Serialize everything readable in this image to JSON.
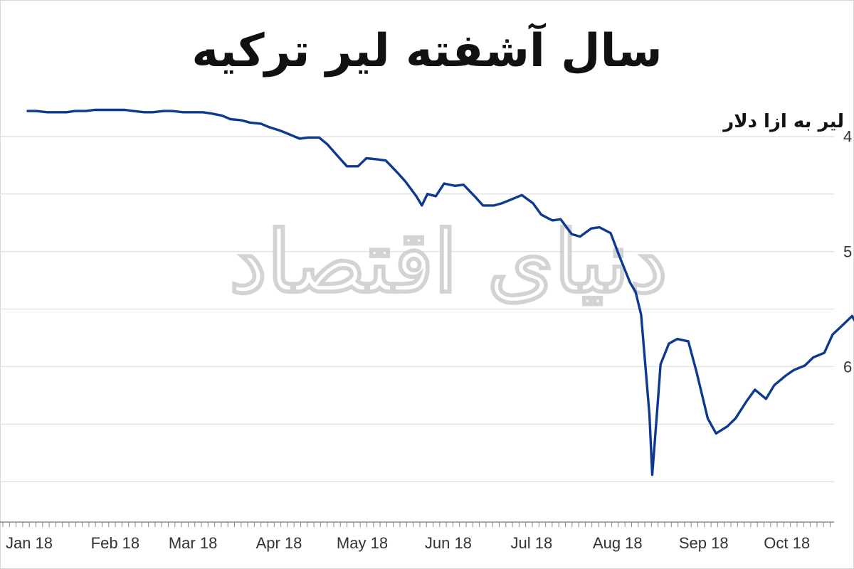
{
  "title": "سال آشفته لیر ترکیه",
  "unit_label": "لیر به ازا دلار",
  "watermark": "دنیای اقتصاد",
  "colors": {
    "line": "#0d3a8f",
    "grid": "#e2e2e2",
    "axis": "#8a8a8a",
    "background": "#ffffff"
  },
  "chart_data": {
    "type": "line",
    "title": "سال آشفته لیر ترکیه",
    "ylabel": "لیر به ازا دلار",
    "xlabel": "",
    "x_tick_labels": [
      "Jan 18",
      "Feb 18",
      "Mar 18",
      "Apr 18",
      "May 18",
      "Jun 18",
      "Jul 18",
      "Aug 18",
      "Sep 18",
      "Oct 18"
    ],
    "y_tick_labels": [
      "4",
      "5",
      "6"
    ],
    "y_ticks": [
      4.0,
      4.5,
      5.0,
      5.5,
      6.0,
      6.5,
      7.0
    ],
    "ylim": [
      3.6,
      7.35
    ],
    "y_inverted": true,
    "grid": true,
    "series": [
      {
        "x": [
          "2018-01-01",
          "2018-01-04",
          "2018-01-08",
          "2018-01-11",
          "2018-01-15",
          "2018-01-18",
          "2018-01-22",
          "2018-01-25",
          "2018-01-29",
          "2018-02-01",
          "2018-02-05",
          "2018-02-08",
          "2018-02-12",
          "2018-02-15",
          "2018-02-19",
          "2018-02-22",
          "2018-02-26",
          "2018-03-01",
          "2018-03-05",
          "2018-03-08",
          "2018-03-12",
          "2018-03-15",
          "2018-03-19",
          "2018-03-22",
          "2018-03-26",
          "2018-03-29",
          "2018-04-02",
          "2018-04-05",
          "2018-04-09",
          "2018-04-12",
          "2018-04-16",
          "2018-04-19",
          "2018-04-23",
          "2018-04-26",
          "2018-04-30",
          "2018-05-03",
          "2018-05-07",
          "2018-05-10",
          "2018-05-14",
          "2018-05-17",
          "2018-05-21",
          "2018-05-23",
          "2018-05-25",
          "2018-05-28",
          "2018-05-31",
          "2018-06-04",
          "2018-06-07",
          "2018-06-11",
          "2018-06-14",
          "2018-06-18",
          "2018-06-21",
          "2018-06-25",
          "2018-06-28",
          "2018-07-02",
          "2018-07-05",
          "2018-07-09",
          "2018-07-12",
          "2018-07-16",
          "2018-07-19",
          "2018-07-23",
          "2018-07-26",
          "2018-07-30",
          "2018-08-02",
          "2018-08-06",
          "2018-08-08",
          "2018-08-10",
          "2018-08-13",
          "2018-08-14",
          "2018-08-16",
          "2018-08-17",
          "2018-08-20",
          "2018-08-23",
          "2018-08-27",
          "2018-08-30",
          "2018-09-03",
          "2018-09-06",
          "2018-09-10",
          "2018-09-13",
          "2018-09-17",
          "2018-09-20",
          "2018-09-24",
          "2018-09-27",
          "2018-10-01",
          "2018-10-04",
          "2018-10-08",
          "2018-10-11",
          "2018-10-15",
          "2018-10-18",
          "2018-10-22",
          "2018-10-25",
          "2018-10-29"
        ],
        "y": [
          3.78,
          3.78,
          3.79,
          3.79,
          3.79,
          3.78,
          3.78,
          3.77,
          3.77,
          3.77,
          3.77,
          3.78,
          3.79,
          3.79,
          3.78,
          3.78,
          3.79,
          3.79,
          3.79,
          3.8,
          3.82,
          3.85,
          3.86,
          3.88,
          3.89,
          3.92,
          3.95,
          3.98,
          4.02,
          4.01,
          4.01,
          4.07,
          4.18,
          4.26,
          4.26,
          4.19,
          4.2,
          4.21,
          4.31,
          4.39,
          4.52,
          4.6,
          4.5,
          4.52,
          4.41,
          4.43,
          4.42,
          4.52,
          4.6,
          4.6,
          4.58,
          4.54,
          4.51,
          4.58,
          4.68,
          4.73,
          4.72,
          4.85,
          4.87,
          4.8,
          4.79,
          4.84,
          5.03,
          5.27,
          5.35,
          5.55,
          6.42,
          6.94,
          6.31,
          5.98,
          5.8,
          5.76,
          5.78,
          6.05,
          6.45,
          6.58,
          6.52,
          6.45,
          6.3,
          6.2,
          6.28,
          6.16,
          6.08,
          6.03,
          5.99,
          5.92,
          5.88,
          5.72,
          5.63,
          5.56,
          5.73
        ]
      }
    ]
  }
}
